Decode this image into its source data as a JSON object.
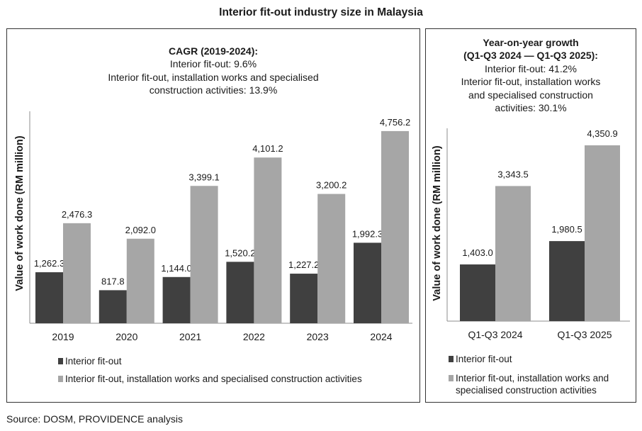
{
  "title": "Interior fit-out industry size in Malaysia",
  "source": "Source: DOSM, PROVIDENCE analysis",
  "colors": {
    "dark": "#404040",
    "light": "#a6a6a6",
    "axis": "#8c8c8c",
    "border": "#333333"
  },
  "chart_data": [
    {
      "type": "bar",
      "ylabel": "Value of work done (RM million)",
      "categories": [
        "2019",
        "2020",
        "2021",
        "2022",
        "2023",
        "2024"
      ],
      "series": [
        {
          "name": "Interior fit-out",
          "values": [
            1262.3,
            817.8,
            1144.0,
            1520.2,
            1227.2,
            1992.3
          ],
          "labels": [
            "1,262.3",
            "817.8",
            "1,144.0",
            "1,520.2",
            "1,227.2",
            "1,992.3"
          ]
        },
        {
          "name": "Interior fit-out, installation works and specialised construction activities",
          "values": [
            2476.3,
            2092.0,
            3399.1,
            4101.2,
            3200.2,
            4756.2
          ],
          "labels": [
            "2,476.3",
            "2,092.0",
            "3,399.1",
            "4,101.2",
            "3,200.2",
            "4,756.2"
          ]
        }
      ],
      "annotation": {
        "heading": "CAGR (2019-2024):",
        "lines": [
          "Interior fit-out: 9.6%",
          "Interior fit-out, installation works and specialised",
          "construction activities: 13.9%"
        ]
      },
      "legend": [
        {
          "lines": [
            "Interior fit-out"
          ]
        },
        {
          "lines": [
            "Interior fit-out, installation works and specialised construction activities"
          ]
        }
      ]
    },
    {
      "type": "bar",
      "ylabel": "Value of work done (RM million)",
      "categories": [
        "Q1-Q3 2024",
        "Q1-Q3 2025"
      ],
      "series": [
        {
          "name": "Interior fit-out",
          "values": [
            1403.0,
            1980.5
          ],
          "labels": [
            "1,403.0",
            "1,980.5"
          ]
        },
        {
          "name": "Interior fit-out, installation works and specialised construction activities",
          "values": [
            3343.5,
            4350.9
          ],
          "labels": [
            "3,343.5",
            "4,350.9"
          ]
        }
      ],
      "annotation": {
        "heading_lines": [
          "Year-on-year growth",
          "(Q1-Q3 2024 — Q1-Q3 2025):"
        ],
        "lines": [
          "Interior fit-out: 41.2%",
          "Interior fit-out, installation works",
          "and specialised construction",
          "activities: 30.1%"
        ]
      },
      "legend": [
        {
          "lines": [
            "Interior fit-out"
          ]
        },
        {
          "lines": [
            "Interior fit-out, installation works and",
            "specialised construction activities"
          ]
        }
      ]
    }
  ]
}
